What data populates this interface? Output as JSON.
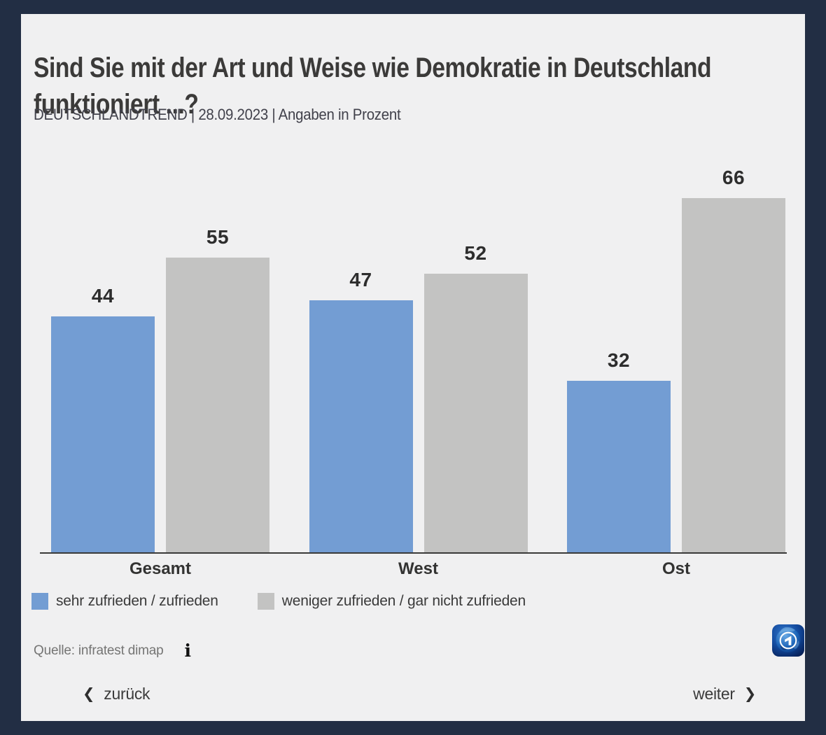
{
  "page": {
    "frame_color": "#222e44",
    "background_color": "#f0f0f1"
  },
  "header": {
    "title": "Sind Sie mit der Art und Weise wie Demokratie in Deutschland funktioniert ...?",
    "subtitle": "DEUTSCHLANDTREND | 28.09.2023 | Angaben in Prozent"
  },
  "chart_data": {
    "type": "bar",
    "title": "Sind Sie mit der Art und Weise wie Demokratie in Deutschland funktioniert ...?",
    "subtitle": "DEUTSCHLANDTREND | 28.09.2023 | Angaben in Prozent",
    "units": "Prozent",
    "categories": [
      "Gesamt",
      "West",
      "Ost"
    ],
    "series": [
      {
        "name": "sehr zufrieden / zufrieden",
        "color": "#739dd3",
        "values": [
          44,
          47,
          32
        ]
      },
      {
        "name": "weniger zufrieden / gar nicht zufrieden",
        "color": "#c3c3c2",
        "values": [
          55,
          52,
          66
        ]
      }
    ],
    "ylim": [
      0,
      70
    ],
    "grid": false,
    "y_axis_visible": false,
    "value_labels": true,
    "legend_position": "bottom"
  },
  "legend": {
    "items": [
      {
        "label": "sehr zufrieden / zufrieden",
        "color": "#739dd3"
      },
      {
        "label": "weniger zufrieden / gar nicht zufrieden",
        "color": "#c3c3c2"
      }
    ]
  },
  "source": {
    "label": "Quelle: infratest dimap",
    "info_icon_glyph": "i"
  },
  "nav": {
    "back": {
      "label": "zurück",
      "icon": "❮"
    },
    "next": {
      "label": "weiter",
      "icon": "❯"
    }
  }
}
